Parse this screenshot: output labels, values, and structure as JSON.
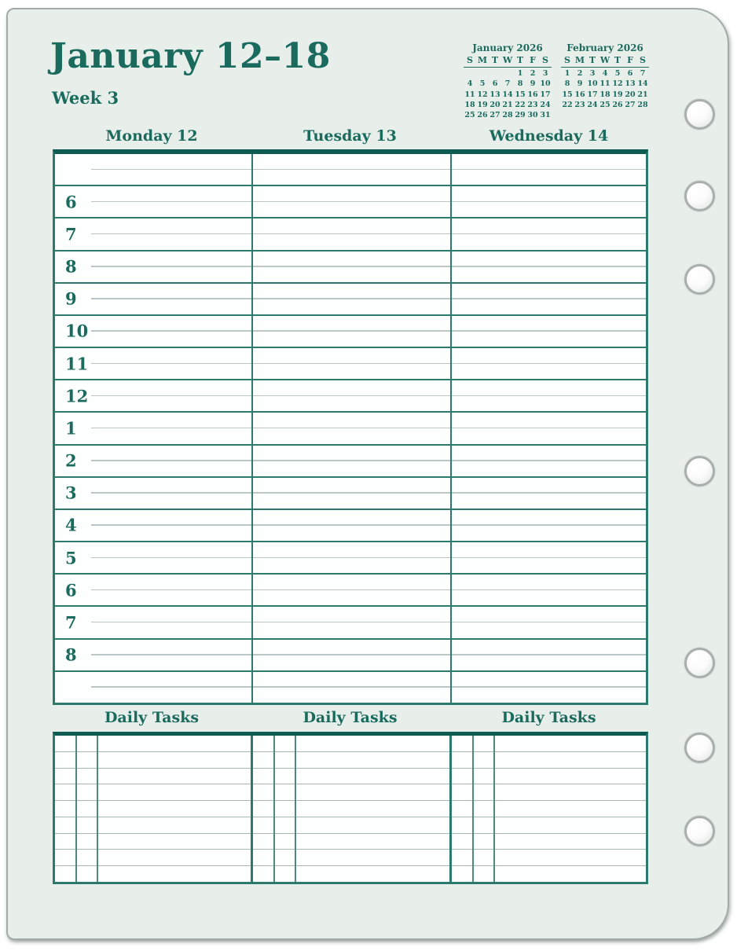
{
  "page": {
    "title": "January 12–18",
    "week_label": "Week 3"
  },
  "mini_calendars": [
    {
      "title": "January 2026",
      "day_headers": [
        "S",
        "M",
        "T",
        "W",
        "T",
        "F",
        "S"
      ],
      "weeks": [
        [
          "",
          "",
          "",
          "",
          "1",
          "2",
          "3"
        ],
        [
          "4",
          "5",
          "6",
          "7",
          "8",
          "9",
          "10"
        ],
        [
          "11",
          "12",
          "13",
          "14",
          "15",
          "16",
          "17"
        ],
        [
          "18",
          "19",
          "20",
          "21",
          "22",
          "23",
          "24"
        ],
        [
          "25",
          "26",
          "27",
          "28",
          "29",
          "30",
          "31"
        ]
      ]
    },
    {
      "title": "February 2026",
      "day_headers": [
        "S",
        "M",
        "T",
        "W",
        "T",
        "F",
        "S"
      ],
      "weeks": [
        [
          "1",
          "2",
          "3",
          "4",
          "5",
          "6",
          "7"
        ],
        [
          "8",
          "9",
          "10",
          "11",
          "12",
          "13",
          "14"
        ],
        [
          "15",
          "16",
          "17",
          "18",
          "19",
          "20",
          "21"
        ],
        [
          "22",
          "23",
          "24",
          "25",
          "26",
          "27",
          "28"
        ]
      ]
    }
  ],
  "schedule": {
    "day_headers": [
      "Monday 12",
      "Tuesday 13",
      "Wednesday 14"
    ],
    "hours": [
      "6",
      "7",
      "8",
      "9",
      "10",
      "11",
      "12",
      "1",
      "2",
      "3",
      "4",
      "5",
      "6",
      "7",
      "8"
    ]
  },
  "daily_tasks": {
    "header": "Daily Tasks",
    "columns": 3,
    "rows": 9
  },
  "binder": {
    "hole_count": 7
  },
  "colors": {
    "page_bg": "#e8efeb",
    "paper_white": "#fdfffe",
    "teal_text": "#1a6a5e",
    "teal_dark": "#0e5c51",
    "grid_line": "#2c7a6d",
    "light_line": "#b9c7c7",
    "task_line": "#a7b9b5",
    "subcol_line": "#4f897e",
    "hole_ring": "#a9afac"
  }
}
